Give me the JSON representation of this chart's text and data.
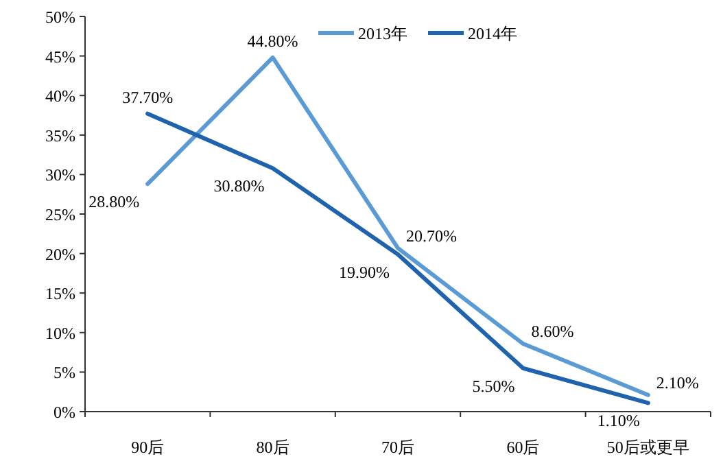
{
  "chart_data": {
    "type": "line",
    "categories": [
      "90后",
      "80后",
      "70后",
      "60后",
      "50后或更早"
    ],
    "series": [
      {
        "name": "2013年",
        "color": "#5b9bd5",
        "values": [
          28.8,
          44.8,
          20.7,
          8.6,
          2.1
        ],
        "value_labels": [
          "28.80%",
          "44.80%",
          "20.70%",
          "8.60%",
          "2.10%"
        ]
      },
      {
        "name": "2014年",
        "color": "#1f62ad",
        "values": [
          37.7,
          30.8,
          19.9,
          5.5,
          1.1
        ],
        "value_labels": [
          "37.70%",
          "30.80%",
          "19.90%",
          "5.50%",
          "1.10%"
        ]
      }
    ],
    "ylim": [
      0,
      50
    ],
    "yticks": [
      {
        "value": 0,
        "label": "0%"
      },
      {
        "value": 5,
        "label": "5%"
      },
      {
        "value": 10,
        "label": "10%"
      },
      {
        "value": 15,
        "label": "15%"
      },
      {
        "value": 20,
        "label": "20%"
      },
      {
        "value": 25,
        "label": "25%"
      },
      {
        "value": 30,
        "label": "30%"
      },
      {
        "value": 35,
        "label": "35%"
      },
      {
        "value": 40,
        "label": "40%"
      },
      {
        "value": 45,
        "label": "45%"
      },
      {
        "value": 50,
        "label": "50%"
      }
    ],
    "grid": false,
    "legend": "top",
    "marker": "none",
    "line_style": "solid"
  }
}
